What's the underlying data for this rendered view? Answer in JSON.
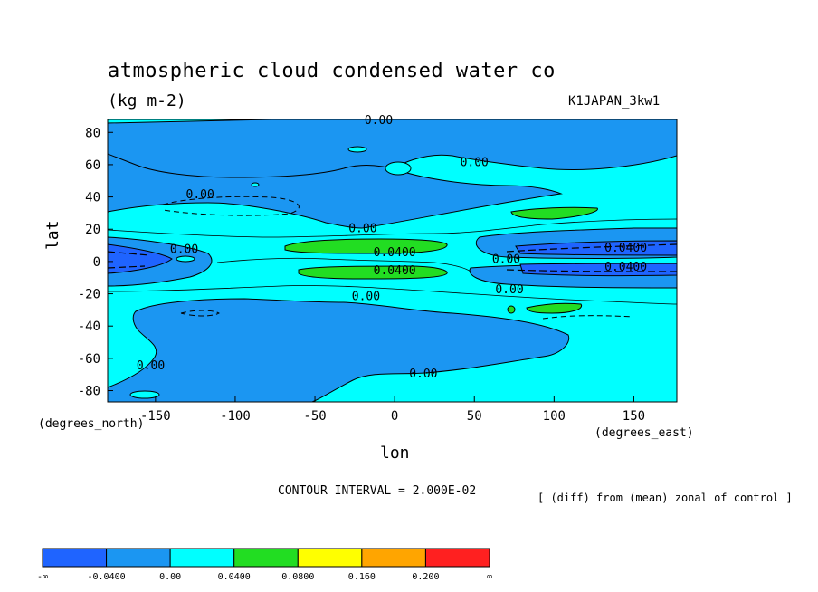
{
  "chart_data": {
    "type": "heatmap",
    "title": "atmospheric cloud condensed water co",
    "units": "(kg m-2)",
    "model_name": "K1JAPAN_3kw1",
    "xlabel": "lon",
    "ylabel": "lat",
    "x_note": "(degrees_east)",
    "y_note": "(degrees_north)",
    "xlim": [
      -180,
      177
    ],
    "ylim": [
      -87,
      88
    ],
    "x_ticks": [
      -150,
      -100,
      -50,
      0,
      50,
      100,
      150
    ],
    "y_ticks": [
      80,
      60,
      40,
      20,
      0,
      -20,
      -40,
      -60,
      -80
    ],
    "contour_interval_text": "CONTOUR INTERVAL = 2.000E-02",
    "subtitle_note": "[ (diff) from (mean) zonal of control ]",
    "legend": {
      "labels": [
        "-∞",
        "-0.0400",
        "0.00",
        "0.0400",
        "0.0800",
        "0.160",
        "0.200",
        "∞"
      ],
      "colors": [
        "#1f64ff",
        "#1b96f2",
        "#00ffff",
        "#22dd22",
        "#ffff00",
        "#ffa500",
        "#ff2020"
      ]
    },
    "contour_labels": [
      {
        "text": "0.00",
        "lon": -10,
        "lat": 88
      },
      {
        "text": "0.00",
        "lon": 50,
        "lat": 62
      },
      {
        "text": "0.00",
        "lon": -122,
        "lat": 42
      },
      {
        "text": "0.00",
        "lon": -20,
        "lat": 21
      },
      {
        "text": "0.00",
        "lon": -132,
        "lat": 8
      },
      {
        "text": "0.0400",
        "lon": 0,
        "lat": 6
      },
      {
        "text": "0.0400",
        "lon": 0,
        "lat": -5
      },
      {
        "text": "0.00",
        "lon": 70,
        "lat": 2
      },
      {
        "text": "0.0400",
        "lon": 145,
        "lat": 9
      },
      {
        "text": "0.0400",
        "lon": 145,
        "lat": -3
      },
      {
        "text": "0.00",
        "lon": 72,
        "lat": -17
      },
      {
        "text": "0.00",
        "lon": -18,
        "lat": -21
      },
      {
        "text": "0.00",
        "lon": -153,
        "lat": -64
      },
      {
        "text": "0.00",
        "lon": 18,
        "lat": -69
      }
    ]
  }
}
